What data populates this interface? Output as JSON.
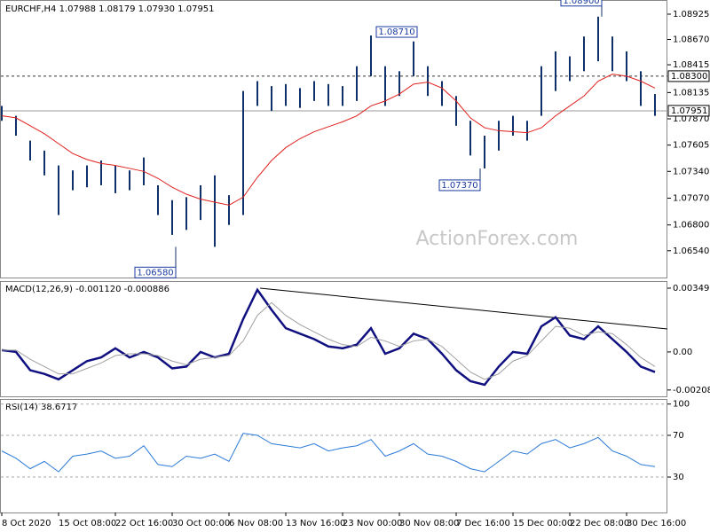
{
  "watermark": "ActionForex.com",
  "chart_data": [
    {
      "type": "ohlc",
      "title": "EURCHF,H4  1.07988 1.08179 1.07930 1.07951",
      "color": "#10306a",
      "high": [
        1.08,
        1.079,
        1.0765,
        1.0755,
        1.074,
        1.0735,
        1.074,
        1.0745,
        1.074,
        1.0735,
        1.0748,
        1.072,
        1.0705,
        1.0708,
        1.072,
        1.073,
        1.071,
        1.0815,
        1.0825,
        1.082,
        1.0822,
        1.0818,
        1.0825,
        1.0822,
        1.082,
        1.084,
        1.0871,
        1.084,
        1.0835,
        1.0865,
        1.084,
        1.0825,
        1.081,
        1.0785,
        1.077,
        1.0785,
        1.079,
        1.0785,
        1.084,
        1.0855,
        1.085,
        1.087,
        1.089,
        1.087,
        1.0855,
        1.0835,
        1.0812
      ],
      "low": [
        1.0785,
        1.077,
        1.0745,
        1.073,
        1.069,
        1.0715,
        1.0718,
        1.072,
        1.0712,
        1.0715,
        1.072,
        1.069,
        1.067,
        1.0675,
        1.0685,
        1.0658,
        1.068,
        1.069,
        1.08,
        1.0795,
        1.08,
        1.0798,
        1.0805,
        1.08,
        1.08,
        1.0805,
        1.083,
        1.08,
        1.081,
        1.083,
        1.081,
        1.08,
        1.078,
        1.075,
        1.0737,
        1.0755,
        1.077,
        1.0765,
        1.079,
        1.0815,
        1.0825,
        1.0835,
        1.0845,
        1.0835,
        1.0825,
        1.08,
        1.079
      ],
      "ma": {
        "color": "#e0201e",
        "values": [
          1.079,
          1.0788,
          1.078,
          1.0772,
          1.0762,
          1.0752,
          1.0746,
          1.0742,
          1.074,
          1.0737,
          1.0734,
          1.0727,
          1.0718,
          1.0711,
          1.0706,
          1.0703,
          1.07,
          1.0708,
          1.0728,
          1.0745,
          1.0758,
          1.0767,
          1.0774,
          1.0779,
          1.0784,
          1.079,
          1.08,
          1.0805,
          1.0812,
          1.0822,
          1.0824,
          1.0818,
          1.0805,
          1.0788,
          1.0778,
          1.0775,
          1.0774,
          1.0773,
          1.0778,
          1.079,
          1.08,
          1.081,
          1.0825,
          1.0832,
          1.083,
          1.0825,
          1.0818
        ]
      },
      "ylim": [
        1.0627,
        1.0905
      ],
      "yticks": [
        1.08925,
        {
          "value": 1.0867,
          "label": "1.08670"
        },
        1.08415,
        1.08135,
        {
          "value": 1.0787,
          "label": "1.07870"
        },
        1.07605,
        {
          "value": 1.0734,
          "label": "1.07340"
        },
        {
          "value": 1.0707,
          "label": "1.07070"
        },
        {
          "value": 1.068,
          "label": "1.06800"
        },
        {
          "value": 1.0654,
          "label": "1.06540"
        }
      ],
      "levels": [
        {
          "value": 1.083,
          "label": "1.08300",
          "style": "dashed"
        },
        {
          "value": 1.07951,
          "label": "1.07951",
          "style": "solid"
        }
      ],
      "annotations": [
        {
          "value": 1.0871,
          "label": "1.08710"
        },
        {
          "value": 1.089,
          "label": "1.08900"
        },
        {
          "value": 1.0737,
          "label": "1.07370"
        },
        {
          "value": 1.0658,
          "label": "1.06580"
        }
      ]
    },
    {
      "type": "line",
      "title": "MACD(12,26,9) -0.001120 -0.000886",
      "series": [
        {
          "color": "#101080",
          "width": 2.5,
          "values": [
            0.0001,
            0,
            -0.001,
            -0.0012,
            -0.0015,
            -0.001,
            -0.0005,
            -0.0003,
            0.0002,
            -0.0003,
            0,
            -0.0003,
            -0.0009,
            -0.0008,
            0,
            -0.0003,
            -0.0001,
            0.0018,
            0.0034,
            0.0023,
            0.0013,
            0.001,
            0.0007,
            0.0003,
            0.0002,
            0.0004,
            0.0013,
            -0.0001,
            0.0002,
            0.001,
            0.0007,
            -0.0001,
            -0.001,
            -0.0016,
            -0.0018,
            -0.0008,
            0,
            -0.0001,
            0.0014,
            0.0019,
            0.0009,
            0.0007,
            0.0014,
            0.0007,
            0,
            -0.0008,
            -0.0011
          ]
        },
        {
          "color": "#a0a0a0",
          "width": 1,
          "values": [
            0.0001,
            0.0001,
            -0.0004,
            -0.0008,
            -0.0012,
            -0.0012,
            -0.0009,
            -0.0006,
            -0.0002,
            -0.0001,
            -0.0001,
            -0.0002,
            -0.0005,
            -0.0007,
            -0.0004,
            -0.0003,
            -0.0002,
            0.0006,
            0.002,
            0.0027,
            0.002,
            0.0015,
            0.0011,
            0.0007,
            0.0004,
            0.0003,
            0.0008,
            0.0006,
            0.0003,
            0.0006,
            0.0007,
            0.0003,
            -0.0004,
            -0.0011,
            -0.0015,
            -0.0012,
            -0.0005,
            -0.0002,
            0.0006,
            0.0014,
            0.0013,
            0.0009,
            0.0011,
            0.001,
            0.0004,
            -0.0003,
            -0.0008
          ]
        }
      ],
      "ylim": [
        -0.00243,
        0.00383
      ],
      "yticks": [
        0.00349,
        {
          "value": 0,
          "label": "0.00"
        },
        -0.002083
      ],
      "grid": false
    },
    {
      "type": "line",
      "title": "RSI(14) 38.6717",
      "series": [
        {
          "color": "#2a7ad8",
          "width": 1,
          "values": [
            55,
            48,
            38,
            45,
            35,
            50,
            52,
            55,
            48,
            50,
            60,
            42,
            40,
            50,
            48,
            52,
            45,
            72,
            70,
            62,
            60,
            58,
            62,
            55,
            58,
            60,
            66,
            50,
            55,
            62,
            52,
            50,
            45,
            38,
            35,
            45,
            55,
            52,
            62,
            66,
            58,
            62,
            68,
            55,
            50,
            42,
            40
          ]
        }
      ],
      "ylim": [
        -4,
        104
      ],
      "yticks": [
        100,
        70,
        30
      ],
      "grid": true,
      "categories": [
        "8 Oct 2020",
        null,
        null,
        null,
        "15 Oct 08:00",
        null,
        null,
        null,
        "22 Oct 16:00",
        null,
        null,
        null,
        "30 Oct 00:00",
        null,
        null,
        null,
        "6 Nov 08:00",
        null,
        null,
        null,
        "13 Nov 16:00",
        null,
        null,
        null,
        "23 Nov 00:00",
        null,
        null,
        null,
        "30 Nov 08:00",
        null,
        null,
        null,
        "7 Dec 16:00",
        null,
        null,
        null,
        "15 Dec 00:00",
        null,
        null,
        null,
        "22 Dec 08:00",
        null,
        null,
        null,
        "30 Dec 16:00",
        null,
        null
      ]
    }
  ]
}
